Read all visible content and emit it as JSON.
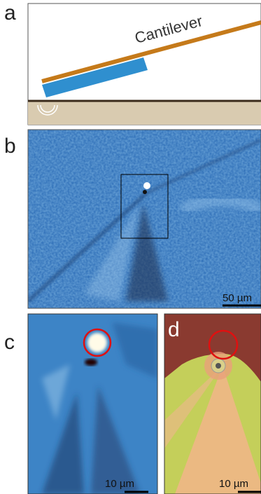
{
  "panels": [
    {
      "label": "a",
      "annotation": "Cantilever"
    },
    {
      "label": "b",
      "scale_bar": "50 µm"
    },
    {
      "label": "c",
      "scale_bar": "10 µm"
    },
    {
      "label": "d",
      "scale_bar": "10 µm"
    }
  ]
}
